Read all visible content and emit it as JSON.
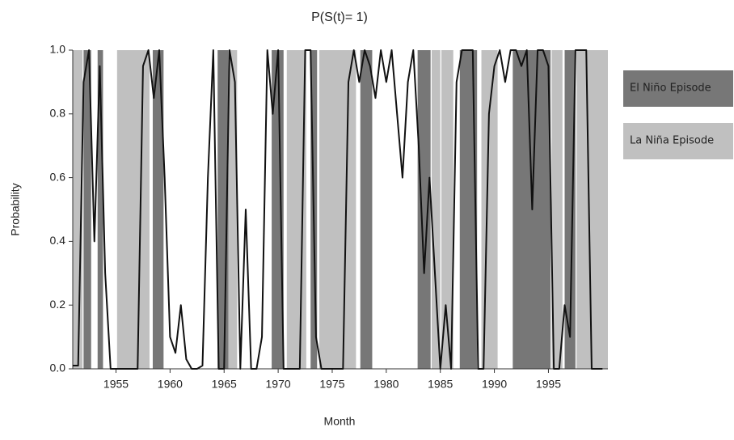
{
  "chart_data": {
    "type": "line",
    "title": "P(S(t)= 1)",
    "x_label": "Month",
    "y_label": "Probability",
    "xlim": [
      1951,
      2000.5
    ],
    "ylim": [
      0,
      1
    ],
    "xticks": [
      1955,
      1960,
      1965,
      1970,
      1975,
      1980,
      1985,
      1990,
      1995
    ],
    "yticks": [
      {
        "value": 0,
        "label": "0.0"
      },
      0.2,
      0.4,
      0.6,
      0.8,
      {
        "value": 1,
        "label": "1.0"
      }
    ],
    "x": [
      1951,
      1951.5,
      1952,
      1952.5,
      1953,
      1953.5,
      1954,
      1954.5,
      1955,
      1955.5,
      1956,
      1956.5,
      1957,
      1957.5,
      1958,
      1958.5,
      1959,
      1959.5,
      1960,
      1960.5,
      1961,
      1961.5,
      1962,
      1962.5,
      1963,
      1963.5,
      1964,
      1964.5,
      1965,
      1965.5,
      1966,
      1966.5,
      1967,
      1967.5,
      1968,
      1968.5,
      1969,
      1969.5,
      1970,
      1970.5,
      1971,
      1971.5,
      1972,
      1972.5,
      1973,
      1973.5,
      1974,
      1974.5,
      1975,
      1975.5,
      1976,
      1976.5,
      1977,
      1977.5,
      1978,
      1978.5,
      1979,
      1979.5,
      1980,
      1980.5,
      1981,
      1981.5,
      1982,
      1982.5,
      1983,
      1983.5,
      1984,
      1984.5,
      1985,
      1985.5,
      1986,
      1986.5,
      1987,
      1987.5,
      1988,
      1988.5,
      1989,
      1989.5,
      1990,
      1990.5,
      1991,
      1991.5,
      1992,
      1992.5,
      1993,
      1993.5,
      1994,
      1994.5,
      1995,
      1995.5,
      1996,
      1996.5,
      1997,
      1997.5,
      1998,
      1998.5,
      1999,
      1999.5,
      2000
    ],
    "series": [
      {
        "color": "#111111",
        "values": [
          0.01,
          0.01,
          0.9,
          1.0,
          0.4,
          0.95,
          0.3,
          0.0,
          0.0,
          0.0,
          0.0,
          0.0,
          0.0,
          0.95,
          1.0,
          0.85,
          1.0,
          0.6,
          0.1,
          0.05,
          0.2,
          0.03,
          0.0,
          0.0,
          0.01,
          0.6,
          1.0,
          0.0,
          0.0,
          1.0,
          0.9,
          0.0,
          0.5,
          0.0,
          0.0,
          0.1,
          1.0,
          0.8,
          1.0,
          0.0,
          0.0,
          0.0,
          0.0,
          1.0,
          1.0,
          0.1,
          0.0,
          0.0,
          0.0,
          0.0,
          0.0,
          0.9,
          1.0,
          0.9,
          1.0,
          0.95,
          0.85,
          1.0,
          0.9,
          1.0,
          0.8,
          0.6,
          0.9,
          1.0,
          0.7,
          0.3,
          0.6,
          0.3,
          0.0,
          0.2,
          0.0,
          0.9,
          1.0,
          1.0,
          1.0,
          0.0,
          0.0,
          0.8,
          0.95,
          1.0,
          0.9,
          1.0,
          1.0,
          0.95,
          1.0,
          0.5,
          1.0,
          1.0,
          0.95,
          0.0,
          0.0,
          0.2,
          0.1,
          1.0,
          1.0,
          1.0,
          0.0,
          0.0,
          0.0
        ]
      }
    ],
    "shading": [
      {
        "name": "El Niño Episode",
        "color": "#777777",
        "spans": [
          [
            1952.0,
            1952.7
          ],
          [
            1953.3,
            1953.8
          ],
          [
            1958.4,
            1959.4
          ],
          [
            1964.4,
            1965.4
          ],
          [
            1969.4,
            1970.5
          ],
          [
            1973.0,
            1973.6
          ],
          [
            1977.6,
            1978.7
          ],
          [
            1982.9,
            1984.1
          ],
          [
            1986.8,
            1988.4
          ],
          [
            1991.7,
            1995.2
          ],
          [
            1996.5,
            1997.5
          ]
        ]
      },
      {
        "name": "La Niña Episode",
        "color": "#c0c0c0",
        "spans": [
          [
            1951.0,
            1951.9
          ],
          [
            1955.1,
            1958.1
          ],
          [
            1965.4,
            1966.2
          ],
          [
            1970.8,
            1972.6
          ],
          [
            1973.8,
            1977.2
          ],
          [
            1984.2,
            1985.0
          ],
          [
            1985.1,
            1986.2
          ],
          [
            1988.8,
            1990.3
          ],
          [
            1995.3,
            1996.3
          ],
          [
            1997.6,
            2000.5
          ]
        ]
      }
    ]
  }
}
